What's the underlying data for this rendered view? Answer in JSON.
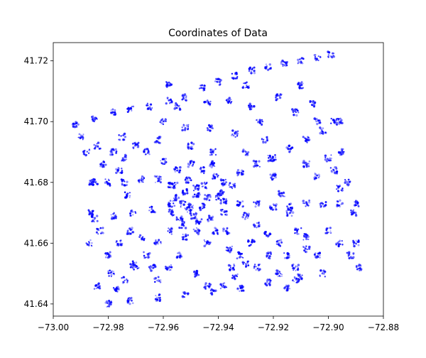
{
  "chart_data": {
    "type": "scatter",
    "title": "Coordinates of Data",
    "xlabel": "",
    "ylabel": "",
    "xlim": [
      -73.0,
      -72.88
    ],
    "ylim": [
      41.636,
      41.726
    ],
    "xticks": [
      -73.0,
      -72.98,
      -72.96,
      -72.94,
      -72.92,
      -72.9,
      -72.88
    ],
    "xtick_labels": [
      "−73.00",
      "−72.98",
      "−72.96",
      "−72.94",
      "−72.92",
      "−72.90",
      "−72.88"
    ],
    "yticks": [
      41.64,
      41.66,
      41.68,
      41.7,
      41.72
    ],
    "ytick_labels": [
      "41.64",
      "41.66",
      "41.68",
      "41.70",
      "41.72"
    ],
    "grid": false,
    "legend": "none",
    "series_color": "#0000ff",
    "points": [
      [
        -72.992,
        41.699
      ],
      [
        -72.985,
        41.701
      ],
      [
        -72.978,
        41.703
      ],
      [
        -72.972,
        41.704
      ],
      [
        -72.965,
        41.705
      ],
      [
        -72.958,
        41.707
      ],
      [
        -72.952,
        41.708
      ],
      [
        -72.946,
        41.711
      ],
      [
        -72.94,
        41.713
      ],
      [
        -72.934,
        41.715
      ],
      [
        -72.928,
        41.717
      ],
      [
        -72.922,
        41.718
      ],
      [
        -72.916,
        41.719
      ],
      [
        -72.91,
        41.72
      ],
      [
        -72.904,
        41.721
      ],
      [
        -72.899,
        41.722
      ],
      [
        -72.898,
        41.7
      ],
      [
        -72.895,
        41.69
      ],
      [
        -72.893,
        41.68
      ],
      [
        -72.891,
        41.67
      ],
      [
        -72.89,
        41.66
      ],
      [
        -72.889,
        41.652
      ],
      [
        -72.902,
        41.65
      ],
      [
        -72.912,
        41.648
      ],
      [
        -72.922,
        41.647
      ],
      [
        -72.932,
        41.645
      ],
      [
        -72.942,
        41.644
      ],
      [
        -72.952,
        41.643
      ],
      [
        -72.962,
        41.642
      ],
      [
        -72.972,
        41.641
      ],
      [
        -72.98,
        41.64
      ],
      [
        -72.987,
        41.66
      ],
      [
        -72.986,
        41.67
      ],
      [
        -72.985,
        41.68
      ],
      [
        -72.988,
        41.69
      ],
      [
        -72.99,
        41.695
      ],
      [
        -72.986,
        41.68
      ],
      [
        -72.98,
        41.68
      ],
      [
        -72.974,
        41.68
      ],
      [
        -72.968,
        41.681
      ],
      [
        -72.962,
        41.681
      ],
      [
        -72.957,
        41.679
      ],
      [
        -72.952,
        41.677
      ],
      [
        -72.948,
        41.676
      ],
      [
        -72.944,
        41.675
      ],
      [
        -72.938,
        41.674
      ],
      [
        -72.932,
        41.673
      ],
      [
        -72.926,
        41.673
      ],
      [
        -72.92,
        41.672
      ],
      [
        -72.914,
        41.672
      ],
      [
        -72.908,
        41.673
      ],
      [
        -72.902,
        41.673
      ],
      [
        -72.896,
        41.673
      ],
      [
        -72.89,
        41.673
      ],
      [
        -72.985,
        41.668
      ],
      [
        -72.978,
        41.669
      ],
      [
        -72.971,
        41.67
      ],
      [
        -72.964,
        41.671
      ],
      [
        -72.957,
        41.673
      ],
      [
        -72.966,
        41.69
      ],
      [
        -72.96,
        41.687
      ],
      [
        -72.955,
        41.684
      ],
      [
        -72.951,
        41.681
      ],
      [
        -72.948,
        41.678
      ],
      [
        -72.944,
        41.706
      ],
      [
        -72.943,
        41.698
      ],
      [
        -72.942,
        41.69
      ],
      [
        -72.941,
        41.682
      ],
      [
        -72.94,
        41.675
      ],
      [
        -72.938,
        41.67
      ],
      [
        -72.937,
        41.664
      ],
      [
        -72.936,
        41.658
      ],
      [
        -72.935,
        41.652
      ],
      [
        -72.95,
        41.672
      ],
      [
        -72.954,
        41.668
      ],
      [
        -72.958,
        41.664
      ],
      [
        -72.962,
        41.66
      ],
      [
        -72.966,
        41.656
      ],
      [
        -72.97,
        41.652
      ],
      [
        -72.974,
        41.648
      ],
      [
        -72.977,
        41.645
      ],
      [
        -72.938,
        41.68
      ],
      [
        -72.932,
        41.683
      ],
      [
        -72.926,
        41.686
      ],
      [
        -72.92,
        41.688
      ],
      [
        -72.914,
        41.691
      ],
      [
        -72.908,
        41.694
      ],
      [
        -72.902,
        41.697
      ],
      [
        -72.896,
        41.7
      ],
      [
        -72.93,
        41.669
      ],
      [
        -72.926,
        41.666
      ],
      [
        -72.922,
        41.663
      ],
      [
        -72.918,
        41.66
      ],
      [
        -72.915,
        41.656
      ],
      [
        -72.912,
        41.652
      ],
      [
        -72.92,
        41.682
      ],
      [
        -72.917,
        41.676
      ],
      [
        -72.914,
        41.67
      ],
      [
        -72.911,
        41.664
      ],
      [
        -72.908,
        41.658
      ],
      [
        -72.925,
        41.7
      ],
      [
        -72.923,
        41.694
      ],
      [
        -72.921,
        41.688
      ],
      [
        -72.958,
        41.712
      ],
      [
        -72.955,
        41.705
      ],
      [
        -72.952,
        41.698
      ],
      [
        -72.95,
        41.692
      ],
      [
        -72.975,
        41.695
      ],
      [
        -72.974,
        41.688
      ],
      [
        -72.973,
        41.676
      ],
      [
        -72.972,
        41.664
      ],
      [
        -72.971,
        41.653
      ],
      [
        -72.96,
        41.7
      ],
      [
        -72.962,
        41.694
      ],
      [
        -72.968,
        41.662
      ],
      [
        -72.964,
        41.652
      ],
      [
        -72.955,
        41.675
      ],
      [
        -72.953,
        41.673
      ],
      [
        -72.951,
        41.671
      ],
      [
        -72.949,
        41.669
      ],
      [
        -72.947,
        41.667
      ],
      [
        -72.956,
        41.679
      ],
      [
        -72.945,
        41.679
      ],
      [
        -72.946,
        41.684
      ],
      [
        -72.95,
        41.686
      ],
      [
        -72.942,
        41.686
      ],
      [
        -72.948,
        41.664
      ],
      [
        -72.944,
        41.66
      ],
      [
        -72.952,
        41.662
      ],
      [
        -72.946,
        41.672
      ],
      [
        -72.943,
        41.668
      ],
      [
        -72.957,
        41.67
      ],
      [
        -72.953,
        41.666
      ],
      [
        -72.939,
        41.677
      ],
      [
        -72.935,
        41.679
      ],
      [
        -72.941,
        41.664
      ],
      [
        -72.91,
        41.712
      ],
      [
        -72.906,
        41.706
      ],
      [
        -72.904,
        41.7
      ],
      [
        -72.912,
        41.703
      ],
      [
        -72.918,
        41.708
      ],
      [
        -72.93,
        41.712
      ],
      [
        -72.936,
        41.707
      ],
      [
        -72.928,
        41.705
      ],
      [
        -72.934,
        41.696
      ],
      [
        -72.93,
        41.69
      ],
      [
        -72.9,
        41.688
      ],
      [
        -72.898,
        41.684
      ],
      [
        -72.904,
        41.682
      ],
      [
        -72.908,
        41.686
      ],
      [
        -72.896,
        41.678
      ],
      [
        -72.9,
        41.664
      ],
      [
        -72.896,
        41.66
      ],
      [
        -72.892,
        41.656
      ],
      [
        -72.904,
        41.656
      ],
      [
        -72.908,
        41.662
      ],
      [
        -72.928,
        41.66
      ],
      [
        -72.932,
        41.656
      ],
      [
        -72.926,
        41.652
      ],
      [
        -72.922,
        41.656
      ],
      [
        -72.918,
        41.65
      ],
      [
        -72.98,
        41.656
      ],
      [
        -72.976,
        41.66
      ],
      [
        -72.983,
        41.664
      ],
      [
        -72.979,
        41.65
      ],
      [
        -72.984,
        41.646
      ],
      [
        -72.982,
        41.686
      ],
      [
        -72.978,
        41.69
      ],
      [
        -72.984,
        41.692
      ],
      [
        -72.976,
        41.684
      ],
      [
        -72.97,
        41.692
      ],
      [
        -72.962,
        41.648
      ],
      [
        -72.958,
        41.652
      ],
      [
        -72.954,
        41.656
      ],
      [
        -72.948,
        41.65
      ],
      [
        -72.944,
        41.646
      ],
      [
        -72.938,
        41.646
      ],
      [
        -72.934,
        41.649
      ],
      [
        -72.93,
        41.653
      ],
      [
        -72.915,
        41.645
      ],
      [
        -72.91,
        41.649
      ]
    ]
  }
}
